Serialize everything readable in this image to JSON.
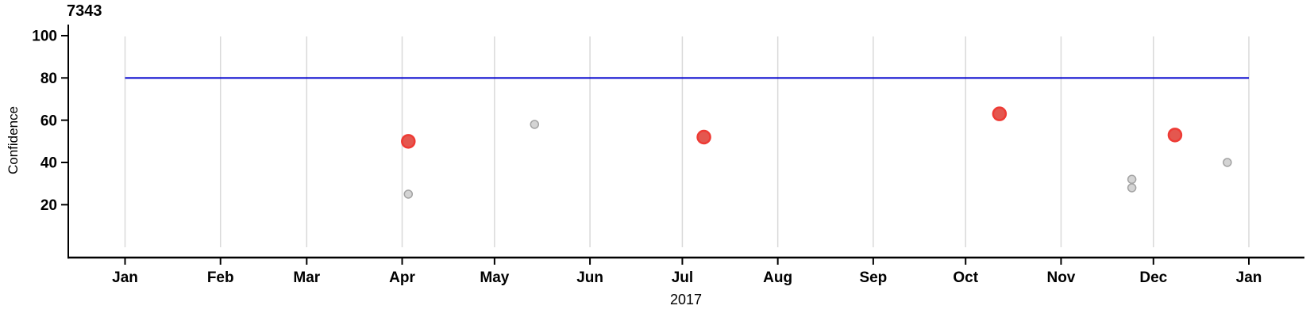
{
  "chart_data": {
    "type": "scatter",
    "title": "7343",
    "ylabel": "Confidence",
    "xlabel": "2017",
    "legend_position": "none",
    "grid": "vertical-month-gridlines",
    "ylim": [
      0,
      105
    ],
    "yticks": [
      20,
      40,
      60,
      80,
      100
    ],
    "x_axis": {
      "kind": "date-months",
      "tick_labels": [
        "Jan",
        "Feb",
        "Mar",
        "Apr",
        "May",
        "Jun",
        "Jul",
        "Aug",
        "Sep",
        "Oct",
        "Nov",
        "Dec",
        "Jan"
      ],
      "tick_day_offsets": [
        0,
        31,
        59,
        90,
        120,
        151,
        181,
        212,
        243,
        273,
        304,
        334,
        365
      ],
      "span_days": 365
    },
    "reference_line": {
      "value": 80,
      "color": "#0000CD"
    },
    "series": [
      {
        "name": "highlighted-points",
        "marker": {
          "fill": "#E4574F",
          "stroke": "#EE3B35",
          "radius": 8,
          "stroke_width": 2.5
        },
        "points": [
          {
            "day": 92,
            "value": 50
          },
          {
            "day": 188,
            "value": 52
          },
          {
            "day": 284,
            "value": 63
          },
          {
            "day": 341,
            "value": 53
          }
        ]
      },
      {
        "name": "background-points",
        "marker": {
          "fill": "#D4D4D4",
          "stroke": "#A3A3A3",
          "radius": 5,
          "stroke_width": 1.5
        },
        "points": [
          {
            "day": 92,
            "value": 25
          },
          {
            "day": 133,
            "value": 58
          },
          {
            "day": 327,
            "value": 32
          },
          {
            "day": 327,
            "value": 28
          },
          {
            "day": 358,
            "value": 40
          }
        ]
      }
    ],
    "colors": {
      "gridline": "#D9D9D9",
      "axis": "#000000",
      "reference_line": "#0000CD",
      "background": "#FFFFFF"
    }
  }
}
